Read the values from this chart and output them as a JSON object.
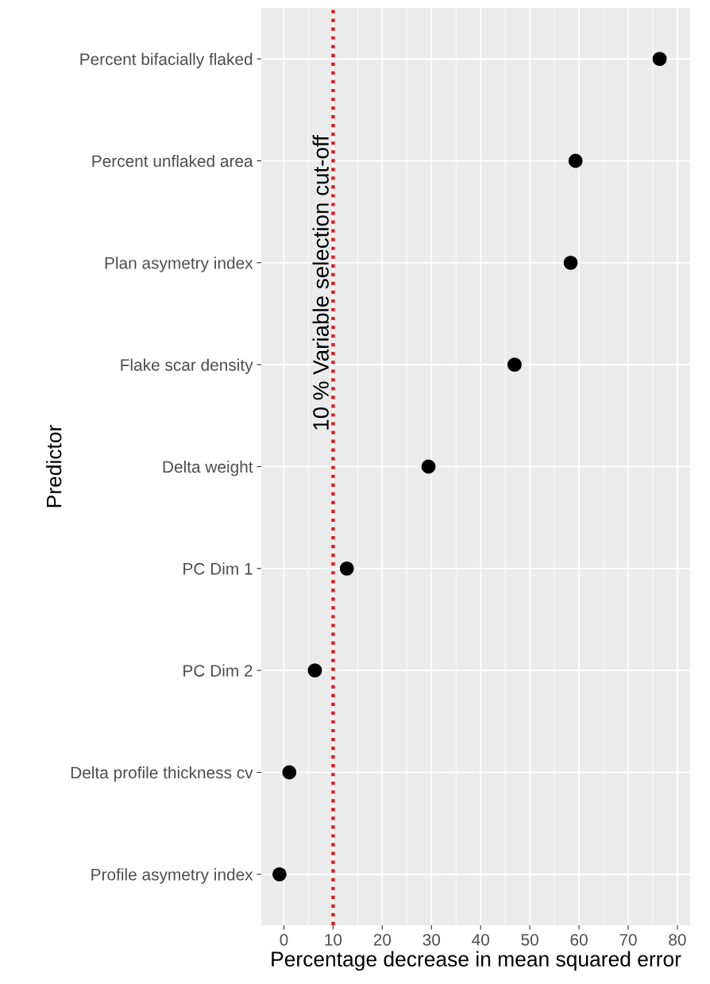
{
  "chart_data": {
    "type": "scatter",
    "xlabel": "Percentage decrease in mean squared error",
    "ylabel": "Predictor",
    "categories": [
      "Percent bifacially flaked",
      "Percent unflaked area",
      "Plan asymetry index",
      "Flake scar density",
      "Delta weight",
      "PC Dim 1",
      "PC Dim 2",
      "Delta profile thickness cv",
      "Profile asymetry index"
    ],
    "series": [
      {
        "color": "#000000",
        "values": [
          76.4,
          59.3,
          58.3,
          46.9,
          29.4,
          12.8,
          6.3,
          1.1,
          -0.9
        ]
      }
    ],
    "orientation": "horizontal",
    "xlim": [
      -4.6,
      82.6
    ],
    "xticks": [
      0,
      10,
      20,
      30,
      40,
      50,
      60,
      70,
      80
    ],
    "ref_lines": [
      {
        "axis": "x",
        "value": 10,
        "label": "10 % Variable selection cut-off",
        "color": "#ff0000",
        "line_style": "dotted"
      }
    ],
    "grid": true,
    "marker": "circle"
  }
}
